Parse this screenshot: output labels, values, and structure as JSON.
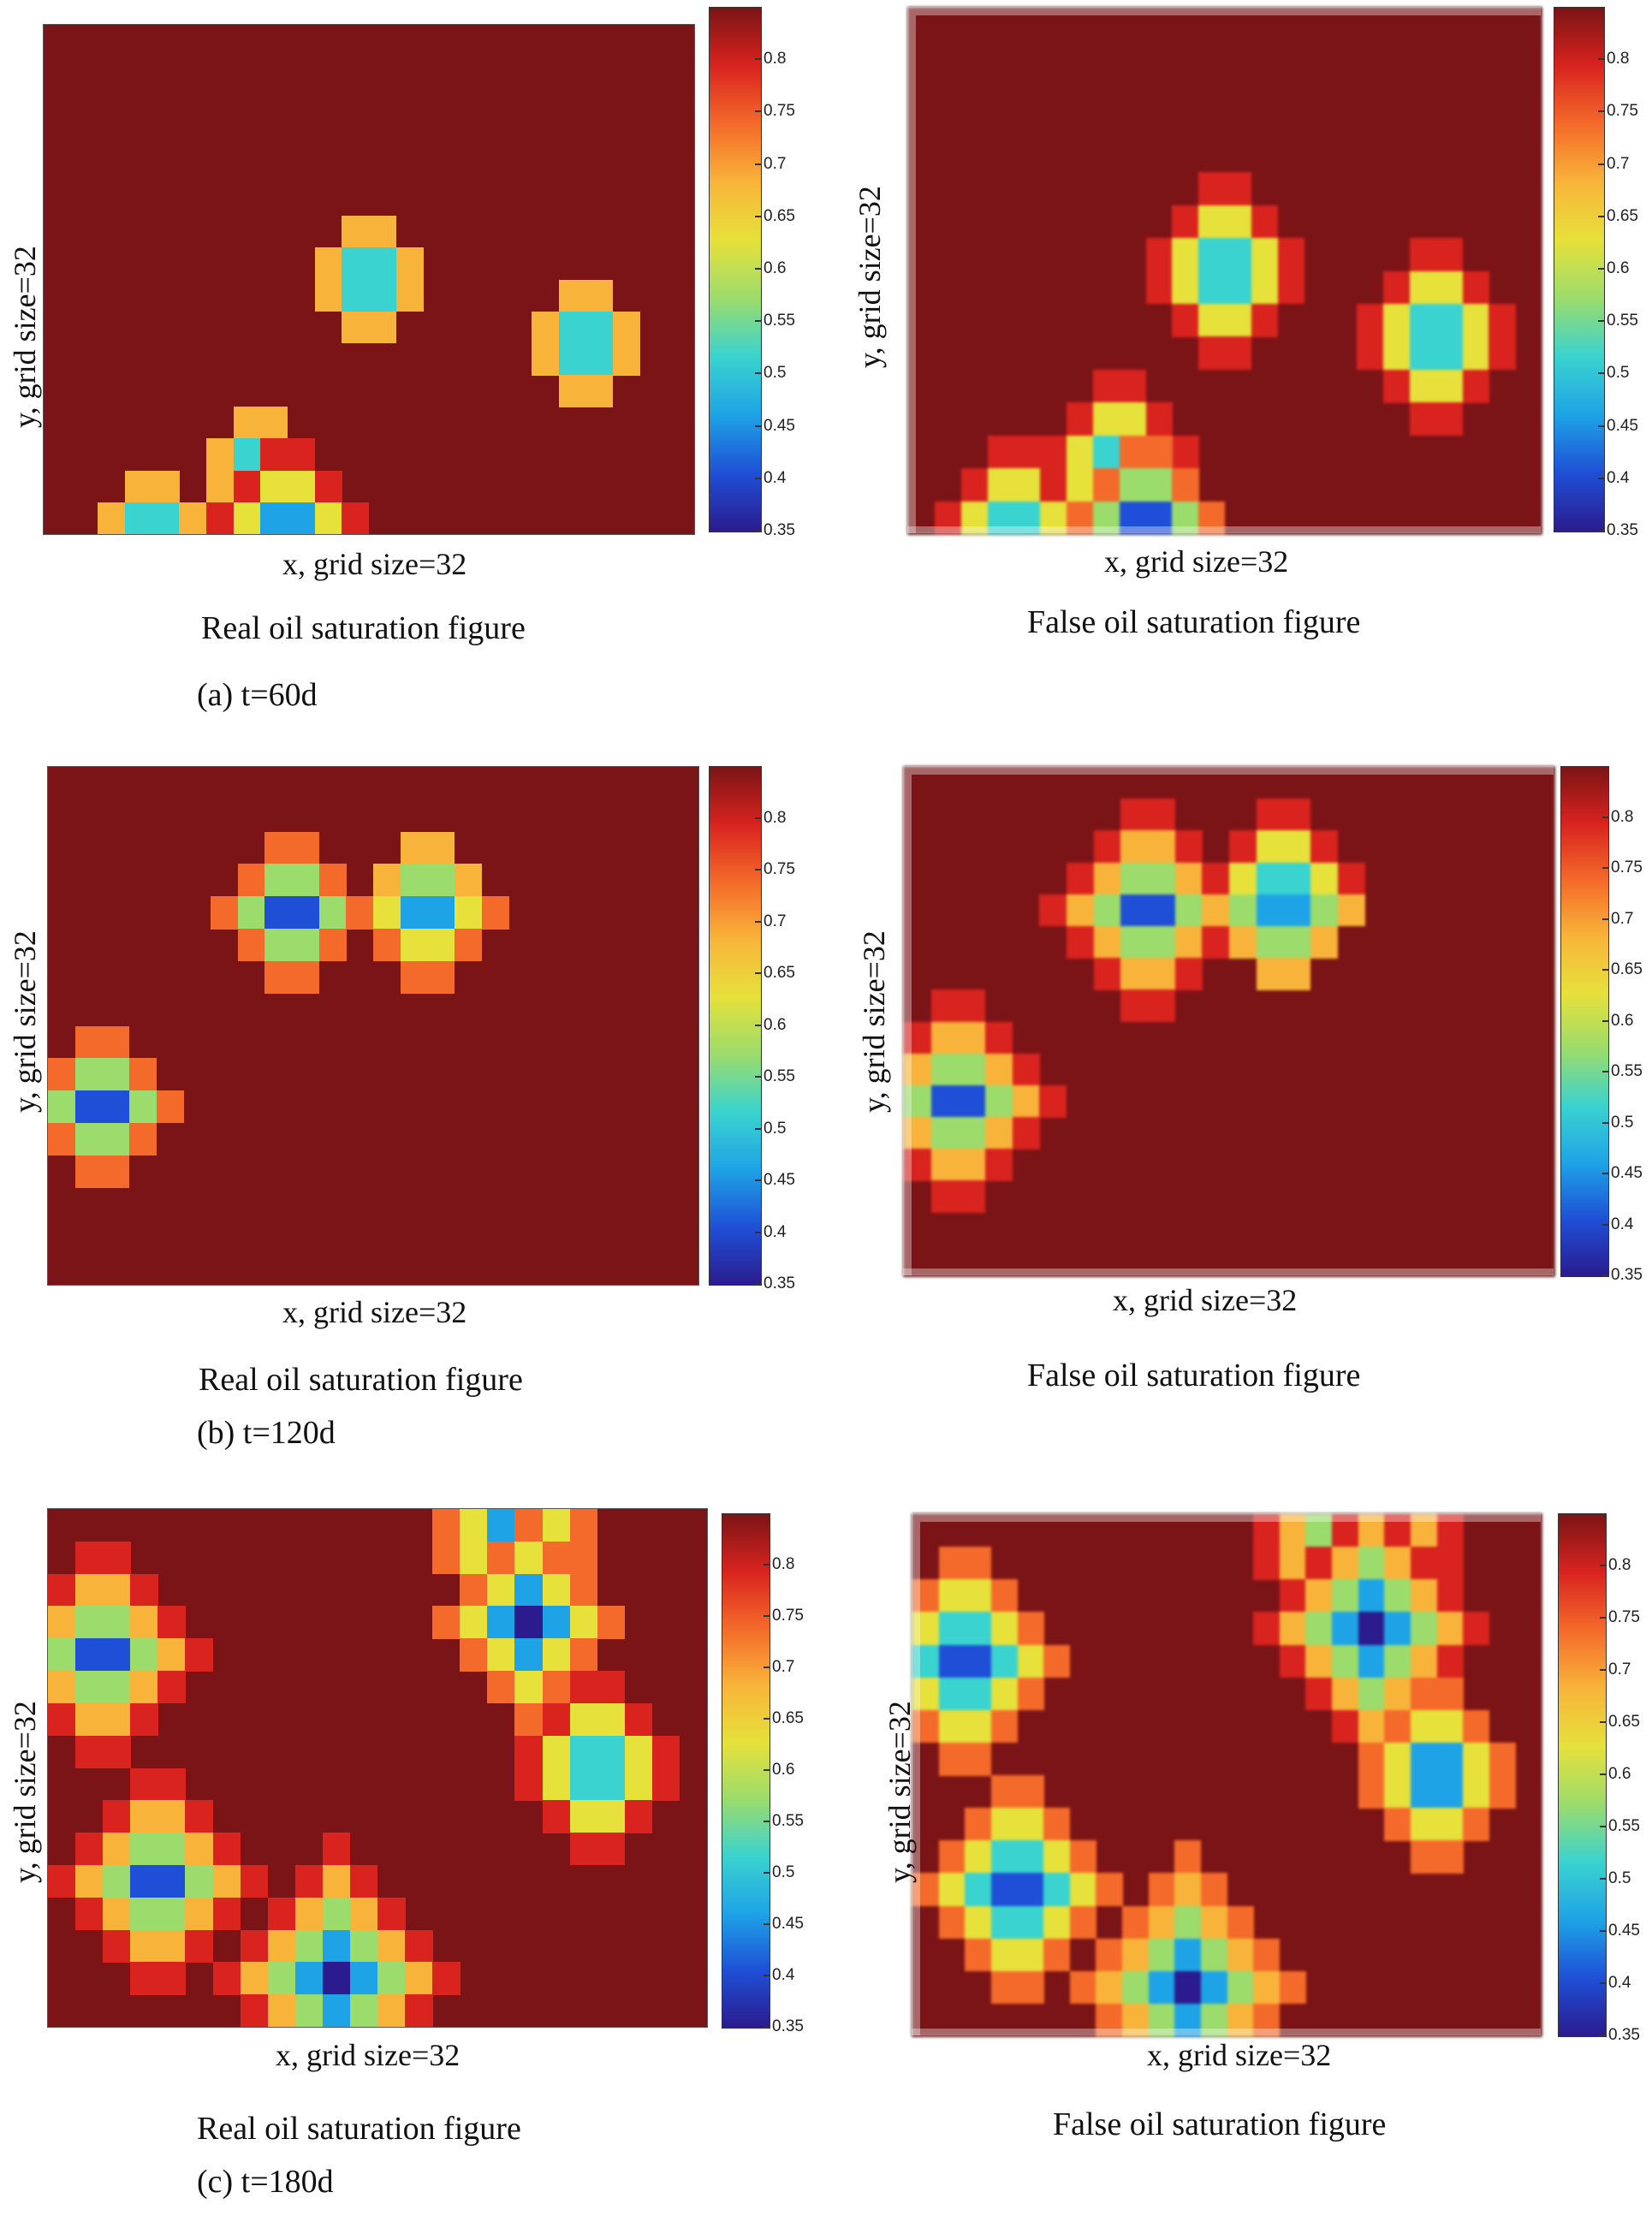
{
  "colorbar": {
    "min": 0.35,
    "max": 0.85,
    "ticks": [
      "0.8",
      "0.75",
      "0.7",
      "0.65",
      "0.6",
      "0.55",
      "0.5",
      "0.45",
      "0.4",
      "0.35"
    ],
    "tick_values": [
      0.8,
      0.75,
      0.7,
      0.65,
      0.6,
      0.55,
      0.5,
      0.45,
      0.4,
      0.35
    ],
    "colors": [
      "#2b1b8e",
      "#1f4fd6",
      "#1ea3e6",
      "#3ad3cf",
      "#9bdc6c",
      "#e6e13b",
      "#f8b43a",
      "#f46a2a",
      "#d8231f",
      "#7b1416"
    ]
  },
  "chart_data": [
    {
      "type": "heatmap",
      "id": "a-real",
      "title": "Real oil saturation figure",
      "xlabel": "x, grid size=32",
      "ylabel": "y, grid size=32",
      "grid": [
        32,
        32
      ],
      "background_value": 0.85,
      "wells": [
        {
          "col": 11.5,
          "row": 7.5,
          "radius": 2
        },
        {
          "col": 19.5,
          "row": 9.5,
          "radius": 2
        },
        {
          "col": 7.5,
          "row": 13.5,
          "radius": 2
        },
        {
          "col": 3.5,
          "row": 15.5,
          "radius": 2
        },
        {
          "col": 8.5,
          "row": 15.0,
          "radius": 2
        }
      ]
    },
    {
      "type": "heatmap",
      "id": "a-false",
      "title": "False oil saturation figure",
      "xlabel": "x, grid size=32",
      "ylabel": "y, grid size=32",
      "grid": [
        32,
        32
      ],
      "background_value": 0.85,
      "wells": [
        {
          "col": 11.5,
          "row": 7.5,
          "radius": 2.5
        },
        {
          "col": 19.5,
          "row": 9.5,
          "radius": 2.5
        },
        {
          "col": 7.5,
          "row": 13.5,
          "radius": 2.5
        },
        {
          "col": 3.5,
          "row": 15.5,
          "radius": 2.5
        },
        {
          "col": 8.5,
          "row": 15.0,
          "radius": 2.5
        }
      ]
    },
    {
      "type": "heatmap",
      "id": "b-real",
      "title": "Real oil saturation figure",
      "xlabel": "x, grid size=32",
      "ylabel": "y, grid size=32",
      "grid": [
        32,
        32
      ],
      "background_value": 0.85,
      "wells": [
        {
          "col": 8.5,
          "row": 4.0,
          "radius": 2.5
        },
        {
          "col": 13.5,
          "row": 3.8,
          "radius": 2.5
        },
        {
          "col": 1.5,
          "row": 10.0,
          "radius": 2.5
        }
      ]
    },
    {
      "type": "heatmap",
      "id": "b-false",
      "title": "False oil saturation figure",
      "xlabel": "x, grid size=32",
      "ylabel": "y, grid size=32",
      "grid": [
        32,
        32
      ],
      "background_value": 0.85,
      "wells": [
        {
          "col": 8.5,
          "row": 4.0,
          "radius": 3
        },
        {
          "col": 13.5,
          "row": 3.8,
          "radius": 3
        },
        {
          "col": 1.5,
          "row": 10.0,
          "radius": 3
        }
      ]
    },
    {
      "type": "heatmap",
      "id": "c-real",
      "title": "Real oil saturation figure",
      "xlabel": "x, grid size=32",
      "ylabel": "y, grid size=32",
      "grid": [
        32,
        32
      ],
      "background_value": 0.85,
      "wells": [
        {
          "col": 16.5,
          "row": 0.5,
          "radius": 3
        },
        {
          "col": 17.0,
          "row": 3.0,
          "radius": 3
        },
        {
          "col": 1.5,
          "row": 4.0,
          "radius": 3
        },
        {
          "col": 19.5,
          "row": 7.5,
          "radius": 2.5
        },
        {
          "col": 3.5,
          "row": 11.0,
          "radius": 3
        },
        {
          "col": 10.0,
          "row": 14.0,
          "radius": 3.5
        }
      ]
    },
    {
      "type": "heatmap",
      "id": "c-false",
      "title": "False oil saturation figure",
      "xlabel": "x, grid size=32",
      "ylabel": "y, grid size=32",
      "grid": [
        32,
        32
      ],
      "background_value": 0.85,
      "wells": [
        {
          "col": 16.5,
          "row": 0.5,
          "radius": 3.5
        },
        {
          "col": 17.0,
          "row": 3.0,
          "radius": 3.5
        },
        {
          "col": 1.5,
          "row": 4.0,
          "radius": 3.5
        },
        {
          "col": 19.5,
          "row": 7.5,
          "radius": 3
        },
        {
          "col": 3.5,
          "row": 11.0,
          "radius": 3.5
        },
        {
          "col": 10.0,
          "row": 14.0,
          "radius": 4
        }
      ]
    }
  ],
  "sublabels": {
    "a": "(a) t=60d",
    "b": "(b) t=120d",
    "c": "(c) t=180d"
  }
}
